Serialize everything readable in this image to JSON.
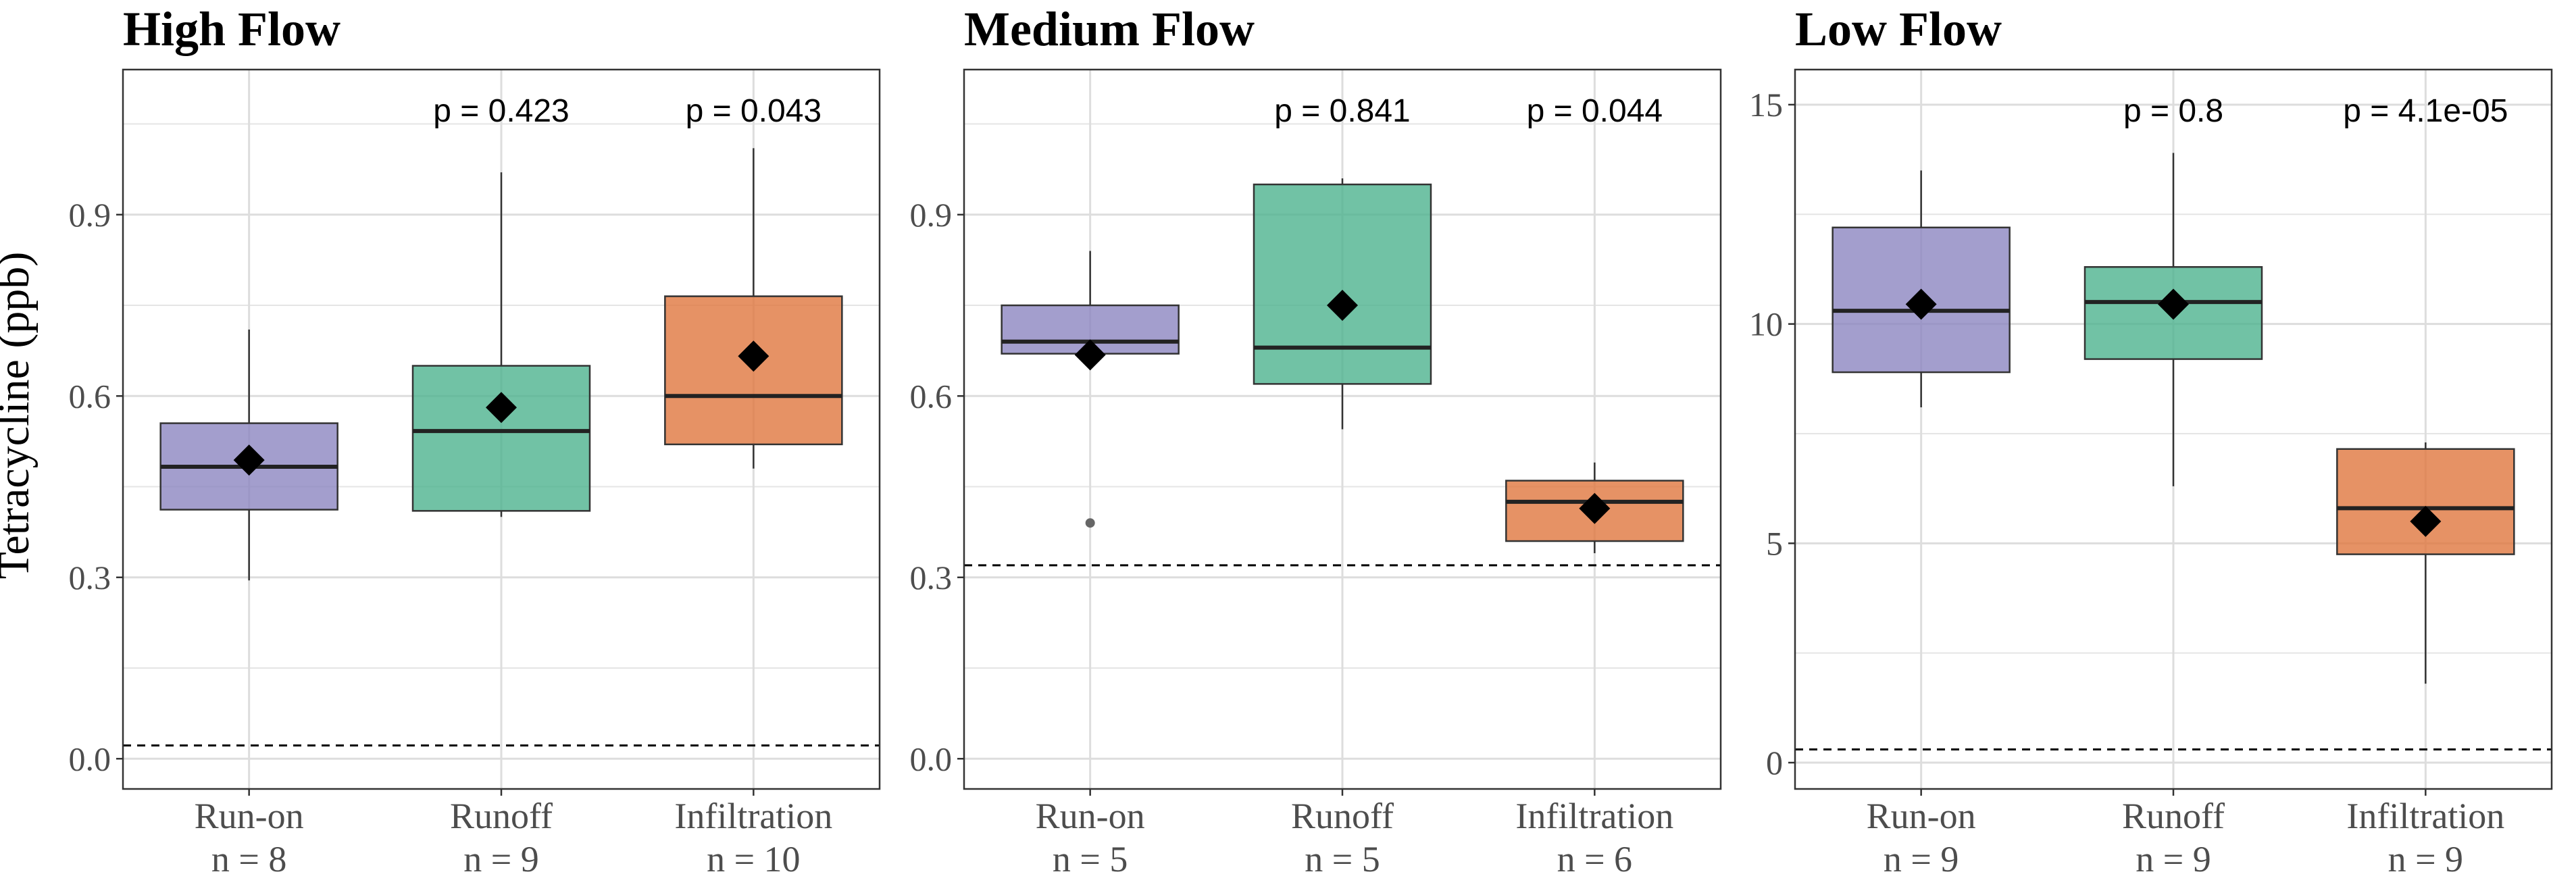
{
  "ylabel": "Tetracycline (ppb)",
  "colors": {
    "Run-on": "#8C86C0",
    "Runoff": "#4DB38E",
    "Infiltration": "#E0773F",
    "grid": "#E5E5E5",
    "frame": "#333333",
    "text": "#4D4D4D"
  },
  "chart_data": [
    {
      "type": "box",
      "title": "High Flow",
      "categories": [
        "Run-on",
        "Runoff",
        "Infiltration"
      ],
      "counts": [
        "n = 8",
        "n = 9",
        "n = 10"
      ],
      "pvalues": [
        "",
        "p = 0.423",
        "p = 0.043"
      ],
      "boxes": [
        {
          "name": "Run-on",
          "min": 0.295,
          "q1": 0.412,
          "median": 0.483,
          "q3": 0.555,
          "max": 0.71,
          "mean": 0.494,
          "outliers": []
        },
        {
          "name": "Runoff",
          "min": 0.4,
          "q1": 0.41,
          "median": 0.542,
          "q3": 0.65,
          "max": 0.97,
          "mean": 0.581,
          "outliers": []
        },
        {
          "name": "Infiltration",
          "min": 0.48,
          "q1": 0.52,
          "median": 0.6,
          "q3": 0.765,
          "max": 1.01,
          "mean": 0.666,
          "outliers": []
        }
      ],
      "reference_line": 0.022,
      "ylim": [
        -0.05,
        1.14
      ],
      "yticks": [
        0.0,
        0.3,
        0.6,
        0.9
      ],
      "ytick_labels": [
        "0.0",
        "0.3",
        "0.6",
        "0.9"
      ],
      "grid": true
    },
    {
      "type": "box",
      "title": "Medium Flow",
      "categories": [
        "Run-on",
        "Runoff",
        "Infiltration"
      ],
      "counts": [
        "n = 5",
        "n = 5",
        "n = 6"
      ],
      "pvalues": [
        "",
        "p = 0.841",
        "p = 0.044"
      ],
      "boxes": [
        {
          "name": "Run-on",
          "min": 0.67,
          "q1": 0.67,
          "median": 0.69,
          "q3": 0.75,
          "max": 0.84,
          "mean": 0.668,
          "outliers": [
            0.39
          ]
        },
        {
          "name": "Runoff",
          "min": 0.545,
          "q1": 0.62,
          "median": 0.68,
          "q3": 0.95,
          "max": 0.96,
          "mean": 0.75,
          "outliers": []
        },
        {
          "name": "Infiltration",
          "min": 0.34,
          "q1": 0.36,
          "median": 0.425,
          "q3": 0.46,
          "max": 0.49,
          "mean": 0.414,
          "outliers": []
        }
      ],
      "reference_line": 0.32,
      "ylim": [
        -0.05,
        1.14
      ],
      "yticks": [
        0.0,
        0.3,
        0.6,
        0.9
      ],
      "ytick_labels": [
        "0.0",
        "0.3",
        "0.6",
        "0.9"
      ],
      "grid": true
    },
    {
      "type": "box",
      "title": "Low Flow",
      "categories": [
        "Run-on",
        "Runoff",
        "Infiltration"
      ],
      "counts": [
        "n = 9",
        "n = 9",
        "n = 9"
      ],
      "pvalues": [
        "",
        "p = 0.8",
        "p = 4.1e-05"
      ],
      "boxes": [
        {
          "name": "Run-on",
          "min": 8.1,
          "q1": 8.9,
          "median": 10.3,
          "q3": 12.2,
          "max": 13.5,
          "mean": 10.45,
          "outliers": []
        },
        {
          "name": "Runoff",
          "min": 6.3,
          "q1": 9.2,
          "median": 10.5,
          "q3": 11.3,
          "max": 13.9,
          "mean": 10.45,
          "outliers": []
        },
        {
          "name": "Infiltration",
          "min": 1.8,
          "q1": 4.75,
          "median": 5.8,
          "q3": 7.15,
          "max": 7.3,
          "mean": 5.5,
          "outliers": []
        }
      ],
      "reference_line": 0.3,
      "ylim": [
        -0.6,
        15.8
      ],
      "yticks": [
        0,
        5,
        10,
        15
      ],
      "ytick_labels": [
        "0",
        "5",
        "10",
        "15"
      ],
      "grid": true
    }
  ]
}
